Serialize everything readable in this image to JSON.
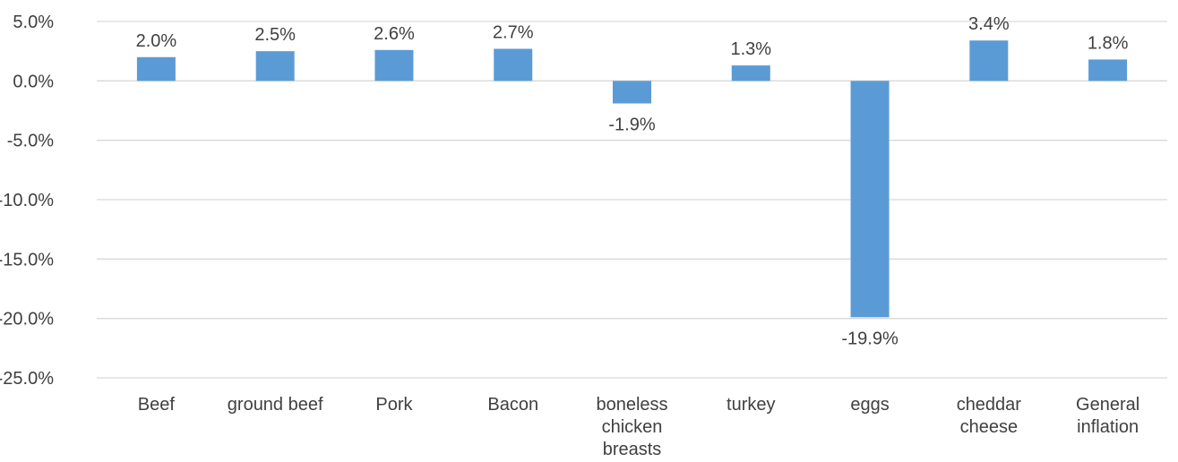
{
  "chart_data": {
    "type": "bar",
    "title": "",
    "xlabel": "",
    "ylabel": "",
    "categories": [
      "Beef",
      "ground beef",
      "Pork",
      "Bacon",
      "boneless chicken breasts",
      "turkey",
      "eggs",
      "cheddar cheese",
      "General inflation"
    ],
    "category_lines": [
      [
        "Beef"
      ],
      [
        "ground beef"
      ],
      [
        "Pork"
      ],
      [
        "Bacon"
      ],
      [
        "boneless",
        "chicken",
        "breasts"
      ],
      [
        "turkey"
      ],
      [
        "eggs"
      ],
      [
        "cheddar",
        "cheese"
      ],
      [
        "General",
        "inflation"
      ]
    ],
    "values": [
      2.0,
      2.5,
      2.6,
      2.7,
      -1.9,
      1.3,
      -19.9,
      3.4,
      1.8
    ],
    "data_labels": [
      "2.0%",
      "2.5%",
      "2.6%",
      "2.7%",
      "-1.9%",
      "1.3%",
      "-19.9%",
      "3.4%",
      "1.8%"
    ],
    "ylim": [
      -25,
      5
    ],
    "yticks": [
      5,
      0,
      -5,
      -10,
      -15,
      -20,
      -25
    ],
    "ytick_labels": [
      "5.0%",
      "0.0%",
      "-5.0%",
      "-10.0%",
      "-15.0%",
      "-20.0%",
      "-25.0%"
    ],
    "grid": true,
    "legend": "none",
    "bar_color": "#5b9bd5",
    "grid_color": "#d9d9d9",
    "text_color": "#404040"
  }
}
